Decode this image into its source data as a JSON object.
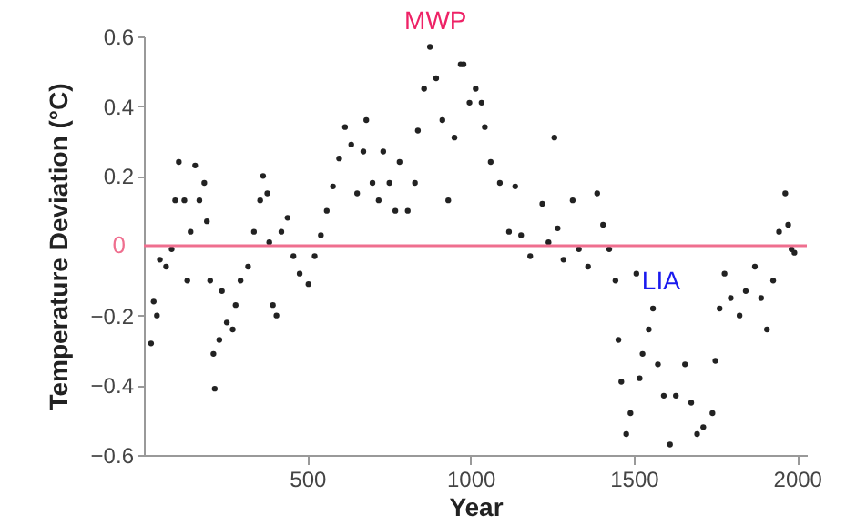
{
  "chart_data": {
    "type": "scatter",
    "xlabel": "Year",
    "ylabel": "Temperature Deviation (°C)",
    "xlim": [
      0,
      2030
    ],
    "ylim": [
      -0.6,
      0.6
    ],
    "xticks": [
      500,
      1000,
      1500,
      2000
    ],
    "yticks": [
      -0.6,
      -0.4,
      -0.2,
      0.2,
      0.4,
      0.6
    ],
    "grid": false,
    "marker": "circle",
    "ref_lines": [
      {
        "axis": "y",
        "value": 0,
        "label": "0",
        "color": "#ef6f8f"
      }
    ],
    "annotations": [
      "MWP",
      "LIA"
    ],
    "series": [
      {
        "color": "#222222",
        "x": [
          22,
          30,
          40,
          49,
          68,
          85,
          96,
          107,
          124,
          133,
          143,
          157,
          170,
          185,
          193,
          203,
          213,
          217,
          231,
          239,
          254,
          272,
          281,
          296,
          319,
          337,
          356,
          365,
          378,
          384,
          395,
          406,
          421,
          440,
          458,
          477,
          504,
          523,
          542,
          560,
          579,
          598,
          616,
          635,
          653,
          672,
          681,
          700,
          719,
          733,
          752,
          770,
          783,
          808,
          830,
          839,
          858,
          876,
          895,
          914,
          932,
          951,
          970,
          979,
          997,
          1016,
          1034,
          1044,
          1062,
          1090,
          1118,
          1137,
          1155,
          1183,
          1220,
          1239,
          1257,
          1267,
          1285,
          1313,
          1332,
          1360,
          1388,
          1406,
          1425,
          1444,
          1453,
          1462,
          1477,
          1490,
          1508,
          1518,
          1527,
          1546,
          1559,
          1574,
          1592,
          1611,
          1629,
          1657,
          1676,
          1694,
          1713,
          1741,
          1750,
          1763,
          1778,
          1797,
          1824,
          1843,
          1871,
          1890,
          1908,
          1927,
          1945,
          1964,
          1973,
          1983,
          1992
        ],
        "values": [
          -0.28,
          -0.16,
          -0.2,
          -0.04,
          -0.06,
          -0.01,
          0.13,
          0.24,
          0.13,
          -0.1,
          0.04,
          0.23,
          0.13,
          0.18,
          0.07,
          -0.1,
          -0.31,
          -0.41,
          -0.27,
          -0.13,
          -0.22,
          -0.24,
          -0.17,
          -0.1,
          -0.06,
          0.04,
          0.13,
          0.2,
          0.15,
          0.01,
          -0.17,
          -0.2,
          0.04,
          0.08,
          -0.03,
          -0.08,
          -0.11,
          -0.03,
          0.03,
          0.1,
          0.17,
          0.25,
          0.34,
          0.29,
          0.15,
          0.27,
          0.36,
          0.18,
          0.13,
          0.27,
          0.18,
          0.1,
          0.24,
          0.1,
          0.18,
          0.33,
          0.45,
          0.57,
          0.48,
          0.36,
          0.13,
          0.31,
          0.52,
          0.52,
          0.41,
          0.45,
          0.41,
          0.34,
          0.24,
          0.18,
          0.04,
          0.17,
          0.03,
          -0.03,
          0.12,
          0.01,
          0.31,
          0.05,
          -0.04,
          0.13,
          -0.01,
          -0.06,
          0.15,
          0.06,
          -0.01,
          -0.1,
          -0.27,
          -0.39,
          -0.54,
          -0.48,
          -0.08,
          -0.38,
          -0.31,
          -0.24,
          -0.18,
          -0.34,
          -0.43,
          -0.57,
          -0.43,
          -0.34,
          -0.45,
          -0.54,
          -0.52,
          -0.48,
          -0.33,
          -0.18,
          -0.08,
          -0.15,
          -0.2,
          -0.13,
          -0.06,
          -0.15,
          -0.24,
          -0.1,
          0.04,
          0.15,
          0.06,
          -0.01,
          -0.02
        ]
      }
    ]
  }
}
